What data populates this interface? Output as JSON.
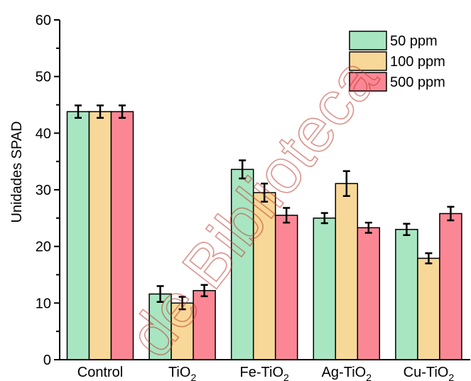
{
  "chart_data": {
    "type": "bar",
    "categories": [
      "Control",
      "TiO",
      "Fe-TiO",
      "Ag-TiO",
      "Cu-TiO"
    ],
    "category_subscripts": [
      "",
      "2",
      "2",
      "2",
      "2"
    ],
    "series": [
      {
        "name": "50 ppm",
        "color": "#a8e6c1",
        "values": [
          43.8,
          11.6,
          33.6,
          25.0,
          23.0
        ],
        "errors": [
          1.1,
          1.4,
          1.6,
          0.9,
          1.0
        ]
      },
      {
        "name": "100 ppm",
        "color": "#f8d898",
        "values": [
          43.8,
          10.0,
          29.5,
          31.1,
          17.9
        ],
        "errors": [
          1.1,
          1.1,
          1.6,
          2.2,
          0.9
        ]
      },
      {
        "name": "500 ppm",
        "color": "#fb8795",
        "values": [
          43.8,
          12.2,
          25.5,
          23.3,
          25.8
        ],
        "errors": [
          1.1,
          1.0,
          1.3,
          0.9,
          1.2
        ]
      }
    ],
    "ylabel": "Unidades SPAD",
    "xlabel": "",
    "ylim": [
      0,
      60
    ],
    "yticks": [
      0,
      10,
      20,
      30,
      40,
      50,
      60
    ],
    "legend_position": "top-right",
    "grid": false
  },
  "watermark": {
    "text": "de Biblioteca",
    "color": "#c0392b"
  }
}
